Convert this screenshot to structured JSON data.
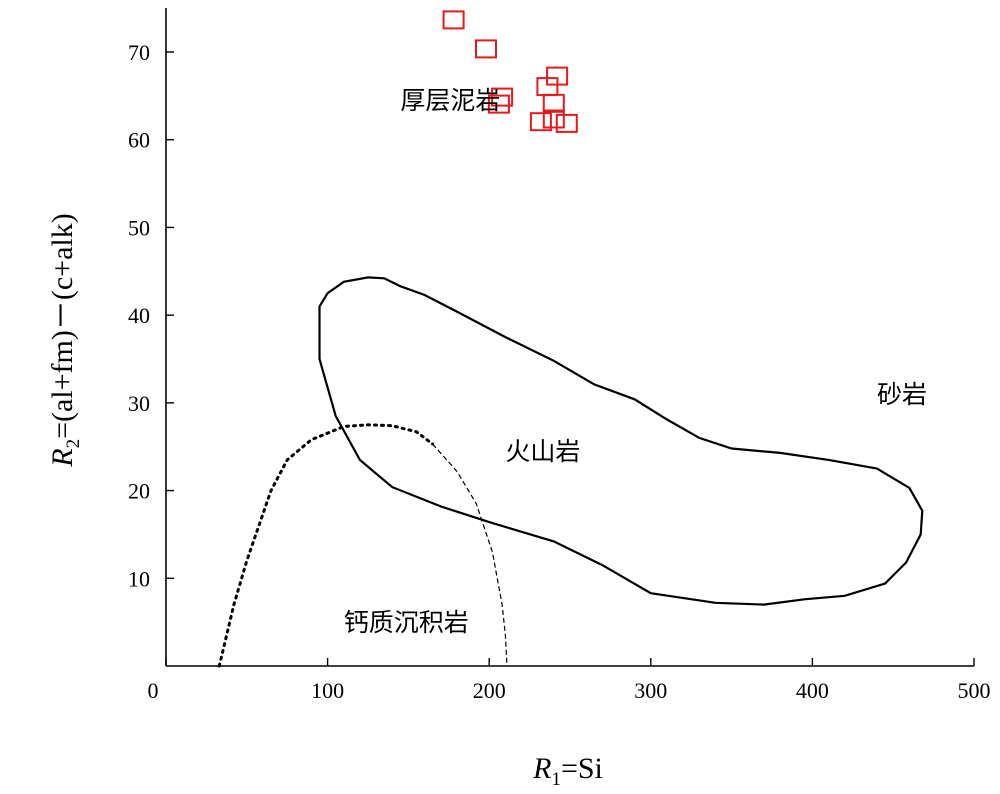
{
  "chart_data": {
    "type": "scatter",
    "title": "",
    "xlabel": {
      "var": "R",
      "sub": "1",
      "rest": "=Si"
    },
    "ylabel": {
      "var": "R",
      "sub": "2",
      "rest": "=(al+fm)－(c+alk)"
    },
    "xlim": [
      0,
      500
    ],
    "ylim": [
      0,
      75
    ],
    "xticks": [
      0,
      100,
      200,
      300,
      400,
      500
    ],
    "yticks": [
      10,
      20,
      30,
      40,
      50,
      60,
      70
    ],
    "grid": false,
    "marker_color": "#e8191b",
    "marker_shape": "open-square",
    "series": [
      {
        "name": "",
        "points": [
          {
            "x": 178,
            "y": 73.6
          },
          {
            "x": 198,
            "y": 70.3
          },
          {
            "x": 208,
            "y": 64.8
          },
          {
            "x": 206,
            "y": 64.0
          },
          {
            "x": 236,
            "y": 66.0
          },
          {
            "x": 242,
            "y": 67.2
          },
          {
            "x": 240,
            "y": 64.1
          },
          {
            "x": 232,
            "y": 62.0
          },
          {
            "x": 240,
            "y": 62.3
          },
          {
            "x": 248,
            "y": 61.8
          }
        ]
      }
    ],
    "regions": [
      {
        "label": "厚层泥岩",
        "label_x": 145,
        "label_y": 64.5
      },
      {
        "label": "砂岩",
        "label_x": 440,
        "label_y": 31
      },
      {
        "label": "火山岩",
        "label_x": 210,
        "label_y": 24.5
      },
      {
        "label": "钙质沉积岩",
        "label_x": 110,
        "label_y": 5
      }
    ],
    "boundaries": [
      {
        "name": "火山岩",
        "style": "solid",
        "closed": true,
        "points": [
          [
            95,
            41
          ],
          [
            100,
            42.5
          ],
          [
            110,
            43.8
          ],
          [
            125,
            44.3
          ],
          [
            135,
            44.2
          ],
          [
            145,
            43.3
          ],
          [
            160,
            42.3
          ],
          [
            180,
            40.4
          ],
          [
            210,
            37.5
          ],
          [
            240,
            34.8
          ],
          [
            265,
            32.1
          ],
          [
            290,
            30.4
          ],
          [
            310,
            28.1
          ],
          [
            330,
            26
          ],
          [
            350,
            24.8
          ],
          [
            380,
            24.3
          ],
          [
            410,
            23.5
          ],
          [
            440,
            22.5
          ],
          [
            460,
            20.3
          ],
          [
            468,
            17.7
          ],
          [
            467,
            15
          ],
          [
            458,
            11.8
          ],
          [
            445,
            9.4
          ],
          [
            420,
            8
          ],
          [
            395,
            7.6
          ],
          [
            370,
            7
          ],
          [
            340,
            7.2
          ],
          [
            300,
            8.3
          ],
          [
            270,
            11.5
          ],
          [
            240,
            14.2
          ],
          [
            200,
            16.4
          ],
          [
            170,
            18.2
          ],
          [
            140,
            20.4
          ],
          [
            120,
            23.5
          ],
          [
            105,
            28.5
          ],
          [
            95,
            35
          ]
        ]
      },
      {
        "name": "钙质沉积岩-outer",
        "style": "dotted",
        "closed": false,
        "points": [
          [
            33,
            0
          ],
          [
            42,
            7
          ],
          [
            50,
            12
          ],
          [
            65,
            20
          ],
          [
            75,
            23.5
          ],
          [
            90,
            25.8
          ],
          [
            110,
            27.3
          ],
          [
            125,
            27.5
          ],
          [
            140,
            27.4
          ],
          [
            155,
            26.7
          ],
          [
            165,
            25.3
          ]
        ]
      },
      {
        "name": "钙质沉积岩-inner",
        "style": "dashed",
        "closed": false,
        "points": [
          [
            165,
            25.3
          ],
          [
            180,
            22.2
          ],
          [
            192,
            18.5
          ],
          [
            202,
            13
          ],
          [
            208,
            7
          ],
          [
            210,
            3.5
          ],
          [
            211,
            0
          ]
        ]
      }
    ]
  }
}
